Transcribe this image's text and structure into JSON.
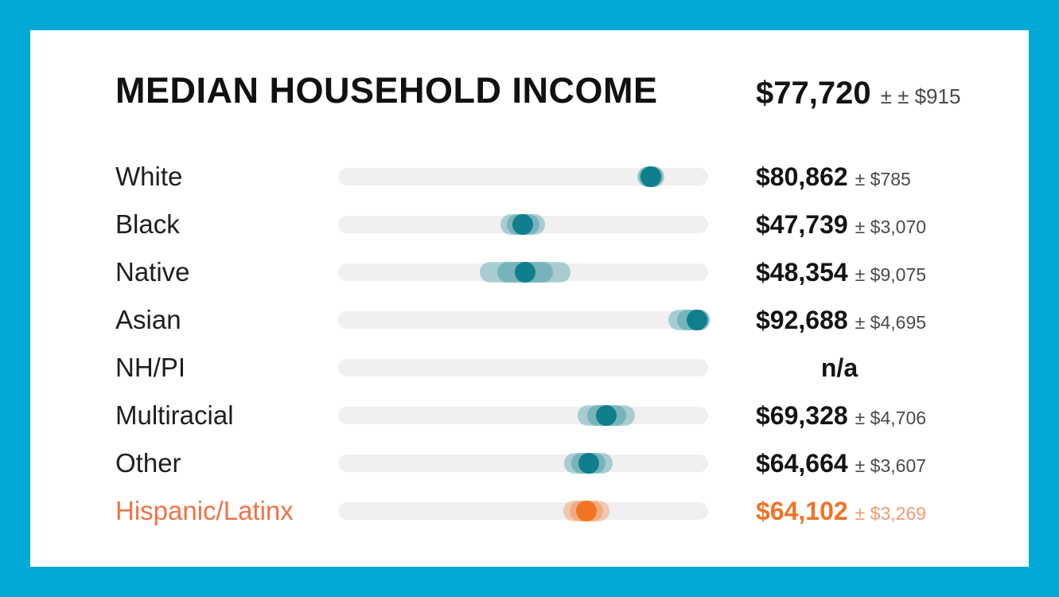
{
  "header": {
    "title": "MEDIAN HOUSEHOLD INCOME",
    "value": "$77,720",
    "moe": "± ± $915"
  },
  "chart_data": {
    "type": "scatter",
    "subtype": "dot-strip-with-moe-band",
    "title": "MEDIAN HOUSEHOLD INCOME",
    "unit": "USD",
    "xlim": [
      0,
      95600
    ],
    "overall": {
      "value": 77720,
      "value_text": "$77,720",
      "moe_text": "± ± $915"
    },
    "rows": [
      {
        "label": "White",
        "value": 80862,
        "moe": 785,
        "value_text": "$80,862",
        "moe_text": "± $785",
        "color": "teal"
      },
      {
        "label": "Black",
        "value": 47739,
        "moe": 3070,
        "value_text": "$47,739",
        "moe_text": "± $3,070",
        "color": "teal"
      },
      {
        "label": "Native",
        "value": 48354,
        "moe": 9075,
        "value_text": "$48,354",
        "moe_text": "± $9,075",
        "color": "teal"
      },
      {
        "label": "Asian",
        "value": 92688,
        "moe": 4695,
        "value_text": "$92,688",
        "moe_text": "± $4,695",
        "color": "teal"
      },
      {
        "label": "NH/PI",
        "value": null,
        "moe": null,
        "value_text": "n/a",
        "moe_text": "",
        "color": "teal"
      },
      {
        "label": "Multiracial",
        "value": 69328,
        "moe": 4706,
        "value_text": "$69,328",
        "moe_text": "± $4,706",
        "color": "teal"
      },
      {
        "label": "Other",
        "value": 64664,
        "moe": 3607,
        "value_text": "$64,664",
        "moe_text": "± $3,607",
        "color": "teal"
      },
      {
        "label": "Hispanic/Latinx",
        "value": 64102,
        "moe": 3269,
        "value_text": "$64,102",
        "moe_text": "± $3,269",
        "color": "orange"
      }
    ]
  },
  "colors": {
    "frame": "#00a9d6",
    "card": "#ffffff",
    "track": "#f0f0f1",
    "teal_dot": "#0f7e8d",
    "teal_band": "rgba(15,126,141,0.32)",
    "orange_dot": "#f07422",
    "orange_band": "rgba(240,116,34,0.32)",
    "orange_label": "#ee7445",
    "orange_value": "#ef7428",
    "orange_moe": "#f29a6a",
    "value_text": "#141414",
    "label_text": "#1e1e1e",
    "moe_text": "#4a4a4a"
  }
}
